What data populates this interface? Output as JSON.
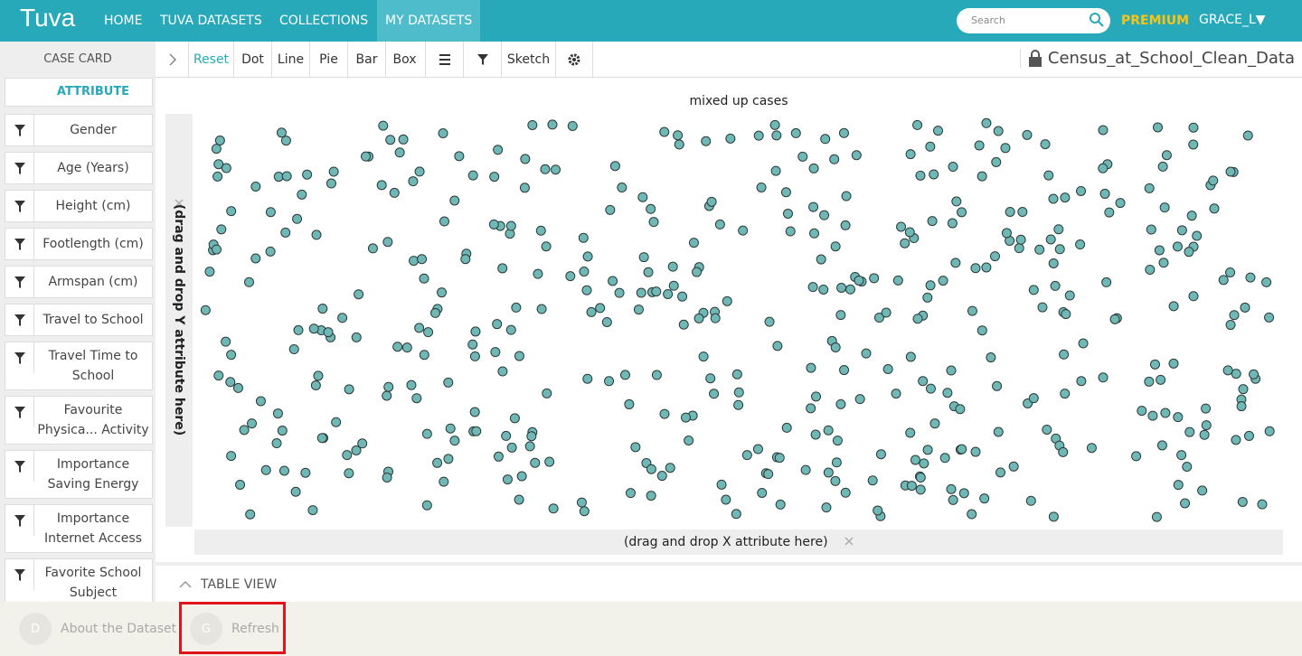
{
  "nav": {
    "logo": "Tuva",
    "links": [
      "HOME",
      "TUVA DATASETS",
      "COLLECTIONS",
      "MY DATASETS"
    ],
    "search": "Search",
    "premium": "PREMIUM",
    "user": "GRACE_L▼"
  },
  "sidebar": {
    "title": "CASE CARD",
    "header": "ATTRIBUTE",
    "attributes": [
      "Gender",
      "Age (Years)",
      "Height (cm)",
      "Footlength (cm)",
      "Armspan (cm)",
      "Travel to School",
      "Travel Time to School",
      "Favourite Physica... Activity",
      "Importance Saving Energy",
      "Importance Internet Access",
      "Favorite School Subject"
    ]
  },
  "toolbar": {
    "buttons": [
      "Reset",
      "Dot",
      "Line",
      "Pie",
      "Bar",
      "Box"
    ],
    "sketch": "Sketch",
    "dataset": "Census_at_School_Clean_Data"
  },
  "plot": {
    "title": "mixed up cases",
    "y_drop": "(drag and drop Y attribute here)",
    "x_drop": "(drag and drop X attribute here)"
  },
  "table_view": "TABLE VIEW",
  "footer": [
    {
      "icon": "D",
      "label": "About the Dataset"
    },
    {
      "icon": "G",
      "label": "Refresh"
    }
  ]
}
